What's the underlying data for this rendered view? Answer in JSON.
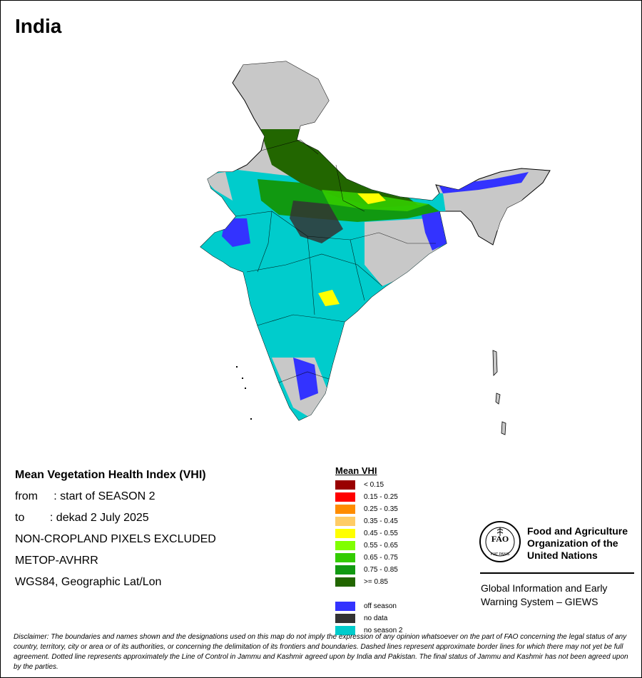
{
  "title": "India",
  "info": {
    "subtitle": "Mean Vegetation Health Index (VHI)",
    "from_line": "from     : start of SEASON 2",
    "to_line": "to        : dekad 2 July 2025",
    "mask_line": "NON-CROPLAND PIXELS EXCLUDED",
    "sensor_line": "METOP-AVHRR",
    "projection_line": "WGS84, Geographic Lat/Lon"
  },
  "legend": {
    "title": "Mean VHI",
    "classes": [
      {
        "label": "< 0.15",
        "color": "#990000"
      },
      {
        "label": "0.15 - 0.25",
        "color": "#ff0000"
      },
      {
        "label": "0.25 - 0.35",
        "color": "#ff8c00"
      },
      {
        "label": "0.35 - 0.45",
        "color": "#ffcc66"
      },
      {
        "label": "0.45 - 0.55",
        "color": "#ffff00"
      },
      {
        "label": "0.55 - 0.65",
        "color": "#80ff00"
      },
      {
        "label": "0.65 - 0.75",
        "color": "#33cc00"
      },
      {
        "label": "0.75 - 0.85",
        "color": "#119911"
      },
      {
        "label": ">= 0.85",
        "color": "#226600"
      }
    ],
    "special": [
      {
        "label": "off season",
        "color": "#3333ff"
      },
      {
        "label": "no data",
        "color": "#333333"
      },
      {
        "label": "no season 2",
        "color": "#00cccc"
      }
    ]
  },
  "fao": {
    "name_line1": "Food and Agriculture",
    "name_line2": "Organization of the",
    "name_line3": "United Nations",
    "logo_text": "FAO",
    "motto": "FIAT PANIS",
    "giews_line1": "Global Information and Early",
    "giews_line2": "Warning System – GIEWS"
  },
  "disclaimer": "Disclaimer: The boundaries and names shown and the designations used on this map do not imply the expression of any opinion whatsoever on the part of FAO concerning the legal status of any country, territory, city or area or of its authorities, or concerning the delimitation of its frontiers and boundaries. Dashed lines represent approximate border lines for which there may not yet be full agreement. Dotted line represents approximately the Line of Control in Jammu and Kashmir agreed upon by India and Pakistan. The final status of Jammu and Kashmir has not been agreed upon by the parties.",
  "map_colors": {
    "background_land": "#c8c8c8",
    "no_season": "#00cccc",
    "dark_green": "#226600",
    "mid_green": "#119911",
    "light_green": "#33cc00",
    "yellow": "#ffff00",
    "off_season": "#3333ff",
    "no_data": "#333333"
  }
}
